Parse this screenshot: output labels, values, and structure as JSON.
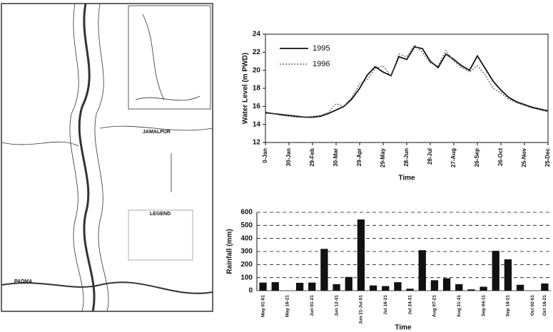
{
  "map": {
    "labels": [
      "JAMALPUR",
      "PADMA",
      "LEGEND"
    ]
  },
  "chart_data": [
    {
      "type": "line",
      "y_label": "Water Level (m PWD)",
      "x_label": "Time",
      "x": [
        0,
        10,
        20,
        30,
        40,
        50,
        60,
        70,
        80,
        90,
        100,
        110,
        120,
        130,
        140,
        150,
        160,
        170,
        180,
        190,
        200,
        210,
        220,
        230,
        240,
        250,
        260,
        270,
        280,
        290,
        300,
        310,
        320,
        330,
        340,
        350,
        360
      ],
      "series": [
        {
          "name": "1995",
          "color": "#111111",
          "values": [
            15.3,
            15.2,
            15.1,
            15.0,
            14.9,
            14.8,
            14.8,
            14.9,
            15.2,
            15.6,
            16.0,
            16.8,
            18.0,
            19.5,
            20.4,
            19.8,
            19.4,
            21.5,
            21.2,
            22.6,
            22.4,
            21.0,
            20.3,
            21.8,
            21.2,
            20.5,
            20.0,
            21.6,
            20.2,
            18.8,
            17.8,
            17.0,
            16.5,
            16.2,
            15.9,
            15.7,
            15.5
          ]
        },
        {
          "name": "1996",
          "color": "#555555",
          "dash": true,
          "values": [
            15.4,
            15.2,
            15.0,
            14.9,
            14.8,
            14.8,
            14.9,
            15.0,
            15.3,
            16.3,
            16.0,
            17.0,
            18.5,
            19.0,
            20.2,
            20.5,
            19.3,
            21.8,
            21.5,
            22.8,
            22.0,
            20.8,
            20.5,
            22.2,
            21.0,
            20.3,
            19.8,
            20.5,
            19.5,
            18.0,
            17.5,
            16.8,
            16.4,
            16.1,
            15.8,
            15.6,
            15.4
          ]
        }
      ],
      "xlim": [
        0,
        360
      ],
      "xticks": [
        {
          "value": 0,
          "label": "0-Jan"
        },
        {
          "value": 30,
          "label": "30-Jan"
        },
        {
          "value": 60,
          "label": "29-Feb"
        },
        {
          "value": 90,
          "label": "30-Mar"
        },
        {
          "value": 120,
          "label": "29-Apr"
        },
        {
          "value": 150,
          "label": "29-May"
        },
        {
          "value": 180,
          "label": "28-Jun"
        },
        {
          "value": 210,
          "label": "28-Jul"
        },
        {
          "value": 240,
          "label": "27-Aug"
        },
        {
          "value": 270,
          "label": "26-Sep"
        },
        {
          "value": 300,
          "label": "26-Oct"
        },
        {
          "value": 330,
          "label": "25-Nov"
        },
        {
          "value": 360,
          "label": "25-Dec"
        }
      ],
      "ylim": [
        12,
        24
      ],
      "yticks": [
        12,
        14,
        16,
        18,
        20,
        22,
        24
      ]
    },
    {
      "type": "bar",
      "y_label": "Rainfall (mm)",
      "x_label": "Time",
      "color": "#111111",
      "grid": true,
      "categories": [
        "May 01-01",
        null,
        "May 16-21",
        null,
        "Jun 01-21",
        null,
        "Jun 12-31",
        null,
        "Jun 21-Jul 01",
        null,
        "Jul 16-21",
        null,
        "Jul 24-31",
        null,
        "Aug 07-21",
        null,
        "Aug 21-31",
        null,
        "Sep 04-11",
        null,
        "Sep 18-21",
        null,
        "Oct 02-01",
        "Oct 16-21"
      ],
      "values": [
        62,
        65,
        null,
        60,
        62,
        320,
        50,
        105,
        545,
        40,
        35,
        65,
        15,
        310,
        80,
        95,
        50,
        10,
        30,
        305,
        240,
        45,
        null,
        55
      ],
      "ylim": [
        0,
        600
      ],
      "yticks": [
        0,
        100,
        200,
        300,
        400,
        500,
        600
      ]
    }
  ]
}
